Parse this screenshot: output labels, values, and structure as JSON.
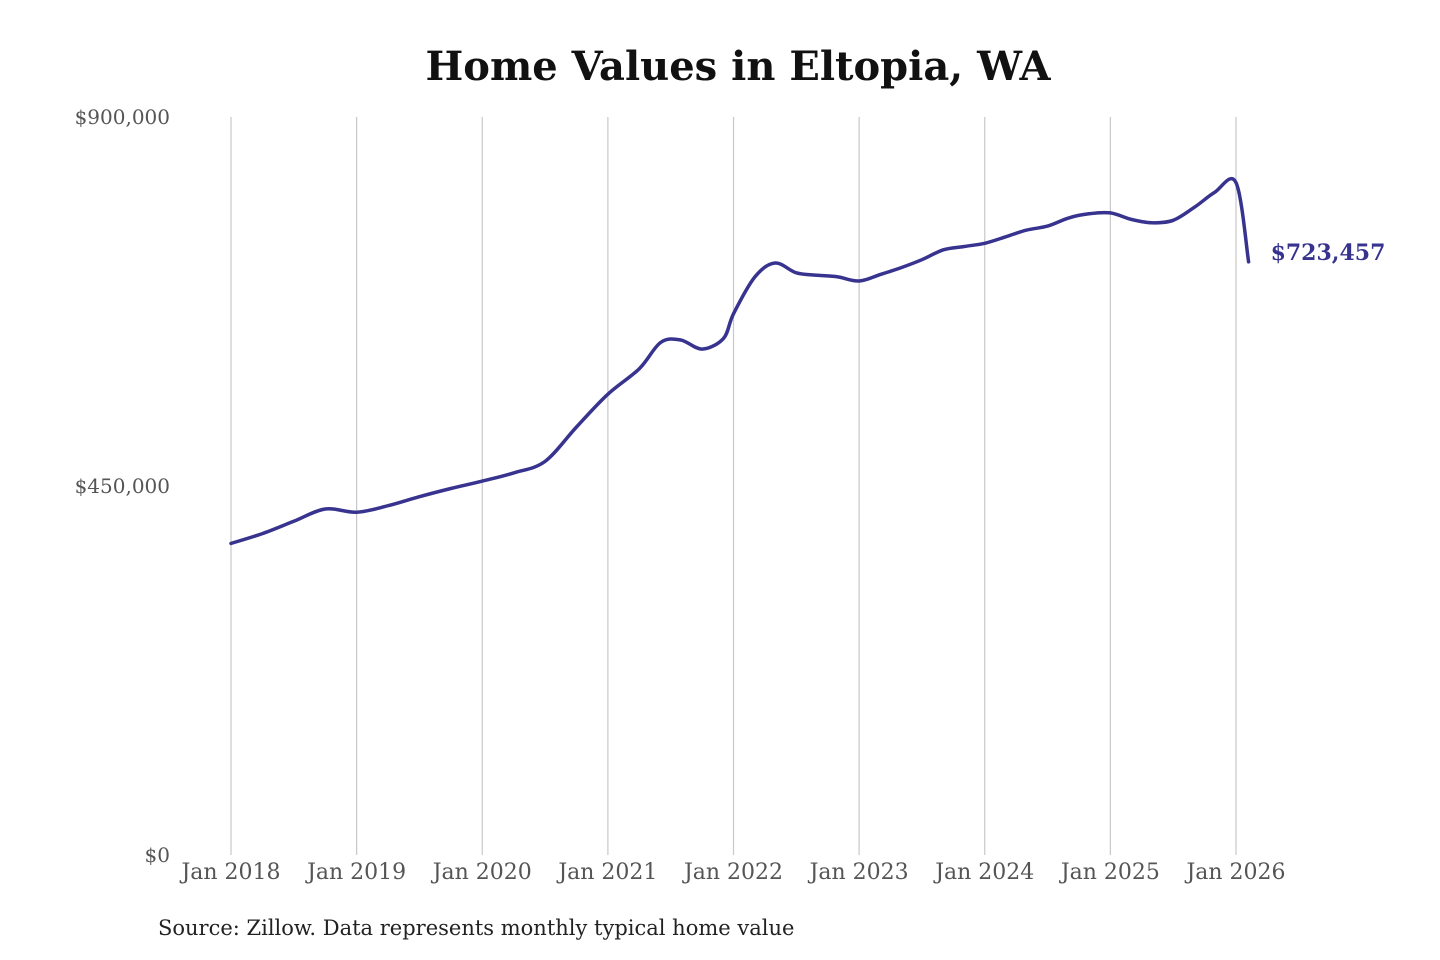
{
  "chart_data": {
    "type": "line",
    "title": "Home Values in Eltopia, WA",
    "xlabel": "",
    "ylabel": "",
    "ylim": [
      0,
      900000
    ],
    "yticks": [
      {
        "value": 0,
        "label": "$0"
      },
      {
        "value": 450000,
        "label": "$450,000"
      },
      {
        "value": 900000,
        "label": "$900,000"
      }
    ],
    "xticks": [
      {
        "value": 2018,
        "label": "Jan 2018"
      },
      {
        "value": 2019,
        "label": "Jan 2019"
      },
      {
        "value": 2020,
        "label": "Jan 2020"
      },
      {
        "value": 2021,
        "label": "Jan 2021"
      },
      {
        "value": 2022,
        "label": "Jan 2022"
      },
      {
        "value": 2023,
        "label": "Jan 2023"
      },
      {
        "value": 2024,
        "label": "Jan 2024"
      },
      {
        "value": 2025,
        "label": "Jan 2025"
      },
      {
        "value": 2026,
        "label": "Jan 2026"
      }
    ],
    "xlim": [
      2018,
      2026.1
    ],
    "grid": "vertical",
    "line_color": "#37338f",
    "series": [
      {
        "name": "",
        "x": [
          2018.0,
          2018.25,
          2018.5,
          2018.75,
          2019.0,
          2019.25,
          2019.5,
          2019.75,
          2020.0,
          2020.25,
          2020.5,
          2020.75,
          2021.0,
          2021.25,
          2021.42,
          2021.58,
          2021.75,
          2021.92,
          2022.0,
          2022.17,
          2022.33,
          2022.5,
          2022.67,
          2022.83,
          2023.0,
          2023.17,
          2023.33,
          2023.5,
          2023.67,
          2023.83,
          2024.0,
          2024.17,
          2024.33,
          2024.5,
          2024.67,
          2024.83,
          2025.0,
          2025.17,
          2025.33,
          2025.5,
          2025.67,
          2025.83,
          2026.0,
          2026.1
        ],
        "values": [
          380000,
          392000,
          407000,
          422000,
          418000,
          426000,
          437000,
          447000,
          456000,
          466000,
          480000,
          522000,
          562000,
          593000,
          625000,
          628000,
          617000,
          630000,
          660000,
          705000,
          722000,
          710000,
          707000,
          705000,
          700000,
          708000,
          716000,
          726000,
          738000,
          742000,
          746000,
          754000,
          762000,
          767000,
          777000,
          782000,
          783000,
          775000,
          771000,
          774000,
          790000,
          808000,
          820000,
          723457
        ]
      }
    ],
    "end_label": "$723,457"
  },
  "source_note": "Source: Zillow. Data represents monthly typical home value"
}
